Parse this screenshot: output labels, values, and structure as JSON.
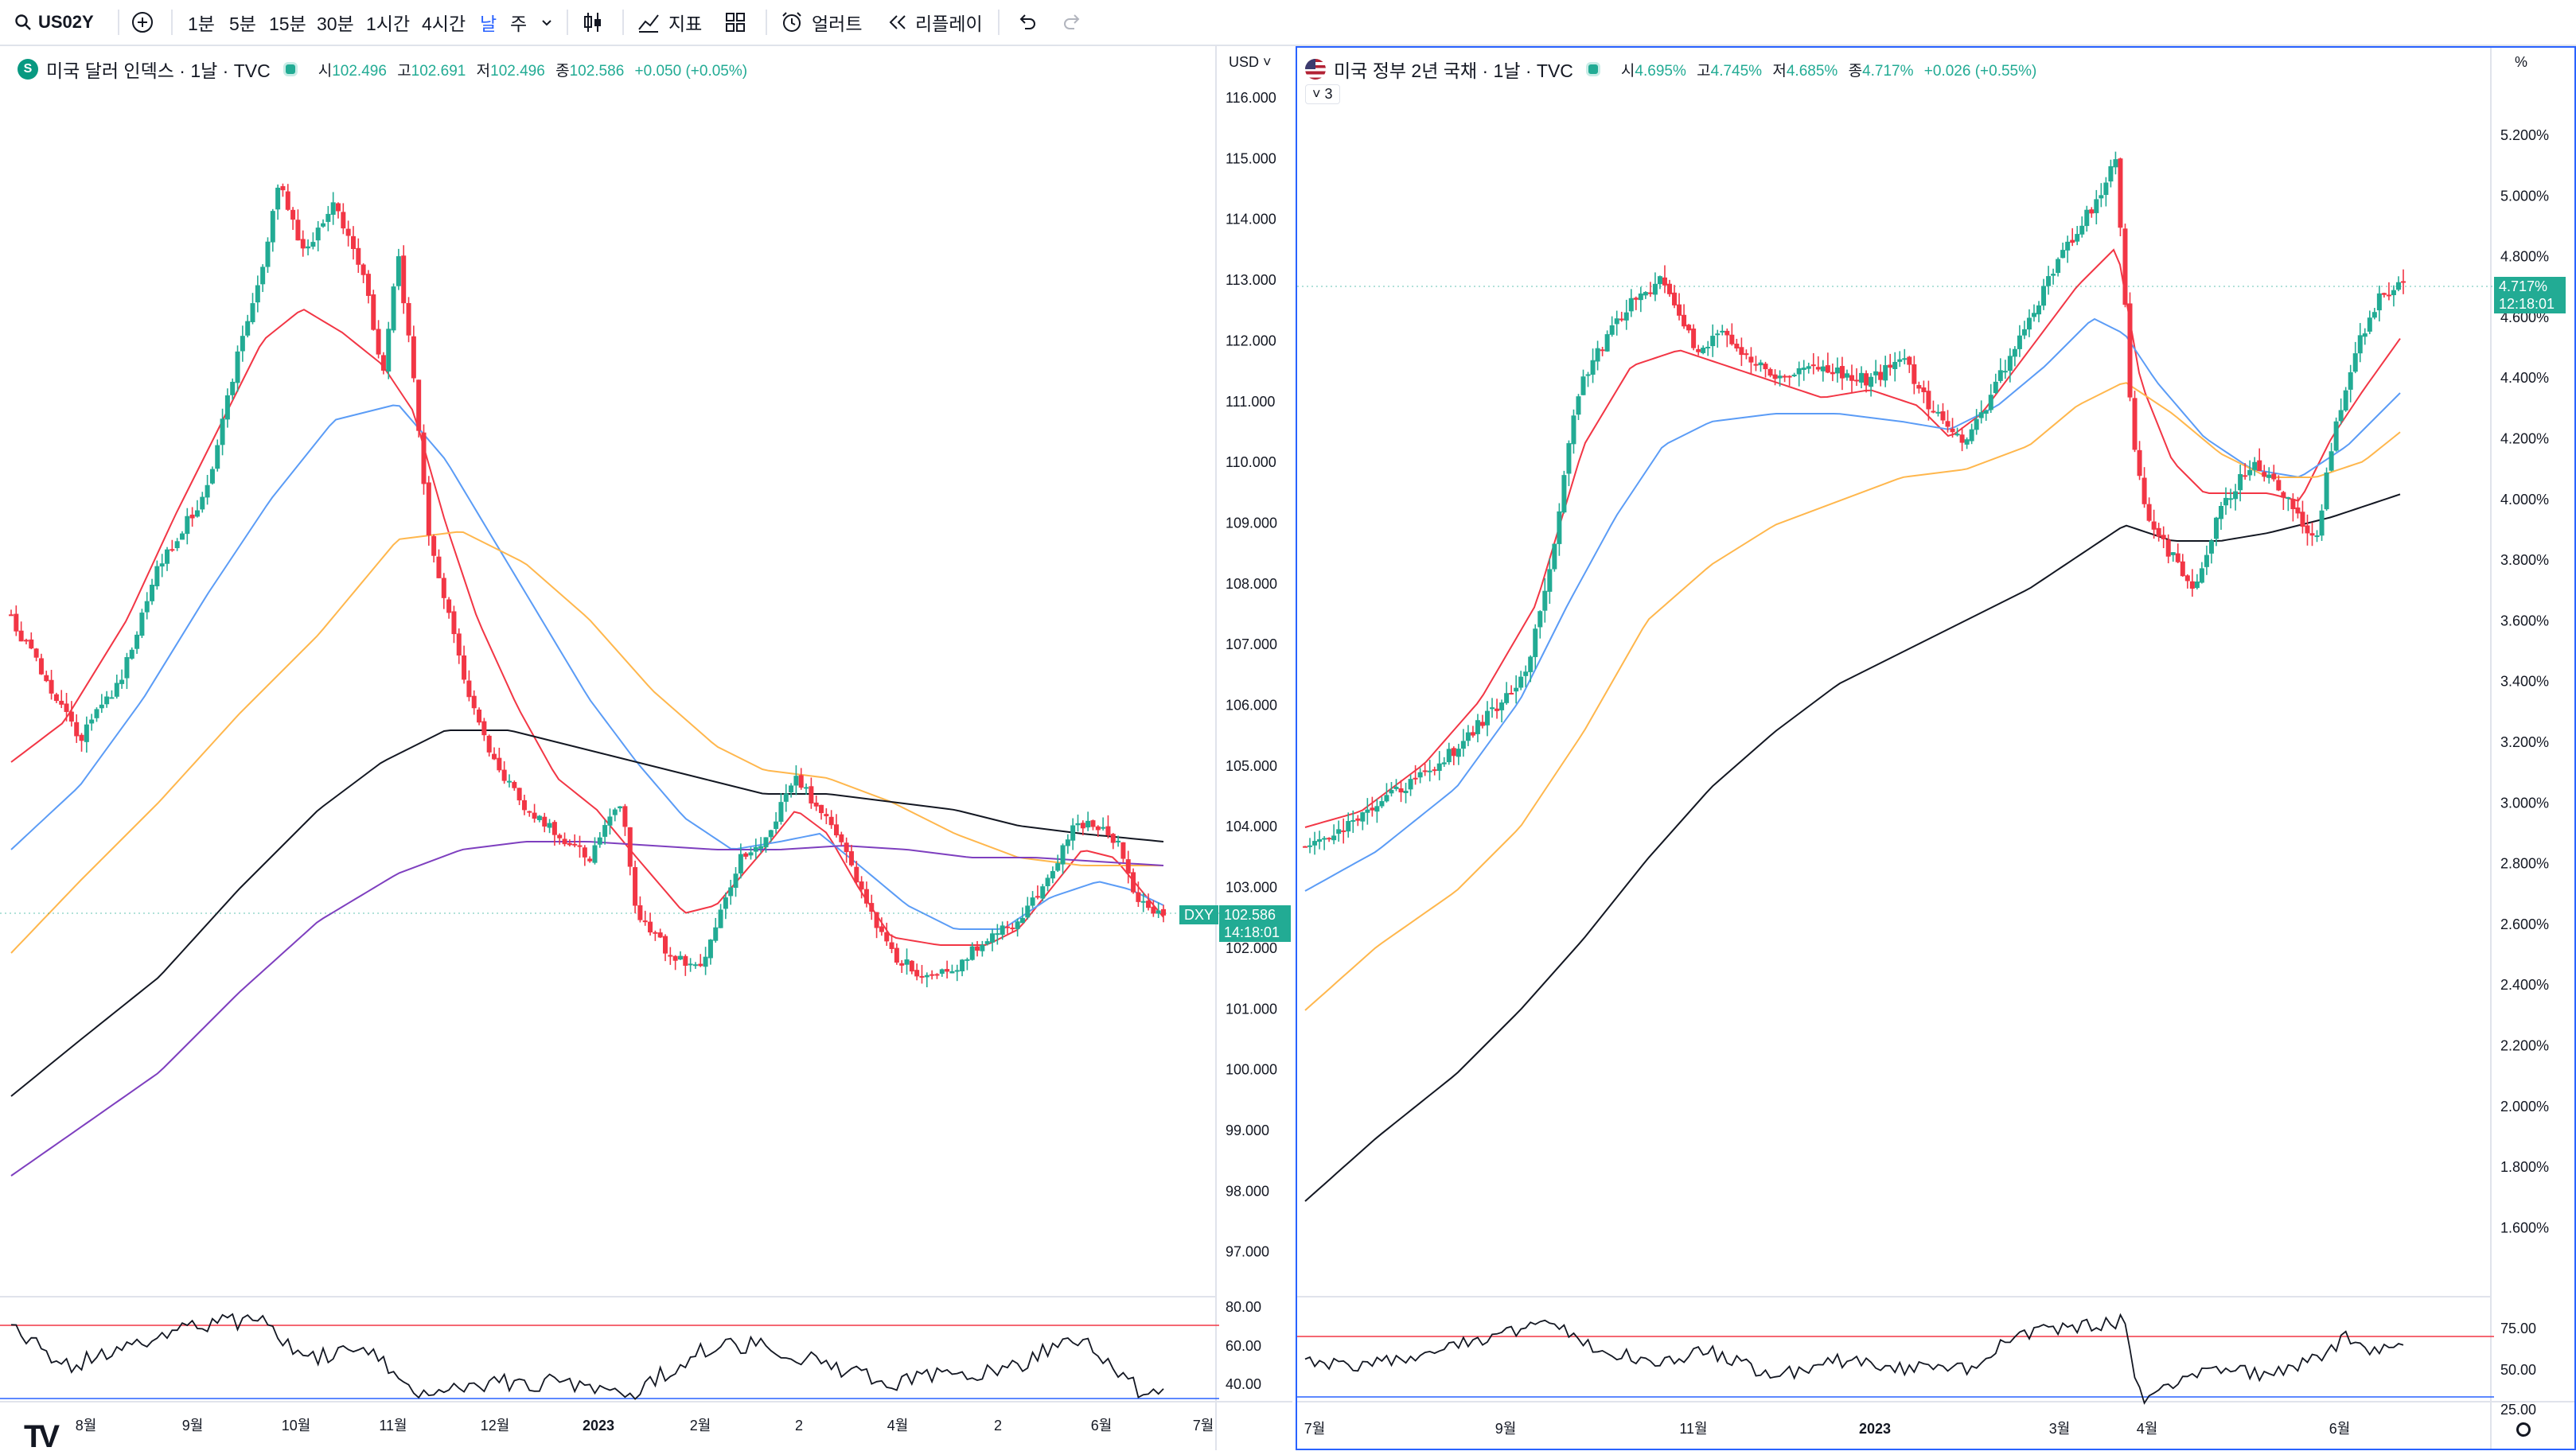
{
  "toolbar": {
    "symbol": "US02Y",
    "intervals": [
      "1분",
      "5분",
      "15분",
      "30분",
      "1시간",
      "4시간",
      "날",
      "주"
    ],
    "active_interval": "날",
    "indicators_label": "지표",
    "alert_label": "얼러트",
    "replay_label": "리플레이",
    "icons": [
      "search-icon",
      "add-symbol-icon",
      "chevron-down-icon",
      "candles-icon",
      "indicators-icon",
      "layout-icon",
      "alarm-icon",
      "replay-icon",
      "undo-icon",
      "redo-icon"
    ]
  },
  "left_chart": {
    "title": "미국 달러 인덱스 · 1날 · TVC",
    "symbol_letter": "S",
    "ohlc": {
      "o_label": "시",
      "o": "102.496",
      "h_label": "고",
      "h": "102.691",
      "l_label": "저",
      "l": "102.496",
      "c_label": "종",
      "c": "102.586",
      "change": "+0.050 (+0.05%)"
    },
    "currency_label": "USD",
    "price_ticks": [
      "116.000",
      "115.000",
      "114.000",
      "113.000",
      "112.000",
      "111.000",
      "110.000",
      "109.000",
      "108.000",
      "107.000",
      "106.000",
      "105.000",
      "104.000",
      "103.000",
      "102.000",
      "101.000",
      "100.000",
      "99.000",
      "98.000",
      "97.000"
    ],
    "last_price_tag": "DXY",
    "last_price": "102.586",
    "countdown": "14:18:01",
    "rsi_ticks": [
      "80.00",
      "60.00",
      "40.00"
    ],
    "time_ticks": [
      "8월",
      "9월",
      "10월",
      "11월",
      "12월",
      "2023",
      "2월",
      "2",
      "4월",
      "2",
      "6월",
      "7월"
    ],
    "colors": {
      "up": "#22ab94",
      "down": "#f23645",
      "ma_red": "#f23645",
      "ma_blue": "#5b9cf6",
      "ma_orange": "#ffb74d",
      "ma_black": "#131722",
      "ma_purple": "#7e3fbf"
    }
  },
  "right_chart": {
    "title": "미국 정부 2년 국채 · 1날 · TVC",
    "ohlc": {
      "o_label": "시",
      "o": "4.695%",
      "h_label": "고",
      "h": "4.745%",
      "l_label": "저",
      "l": "4.685%",
      "c_label": "종",
      "c": "4.717%",
      "change": "+0.026 (+0.55%)"
    },
    "collapse_count": "3",
    "percent_label": "%",
    "price_ticks": [
      "5.200%",
      "5.000%",
      "4.800%",
      "4.600%",
      "4.400%",
      "4.200%",
      "4.000%",
      "3.800%",
      "3.600%",
      "3.400%",
      "3.200%",
      "3.000%",
      "2.800%",
      "2.600%",
      "2.400%",
      "2.200%",
      "2.000%",
      "1.800%",
      "1.600%"
    ],
    "last_price": "4.717%",
    "countdown": "12:18:01",
    "rsi_ticks": [
      "75.00",
      "50.00",
      "25.00"
    ],
    "time_ticks": [
      "7월",
      "9월",
      "11월",
      "2023",
      "3월",
      "4월",
      "6월"
    ]
  }
}
